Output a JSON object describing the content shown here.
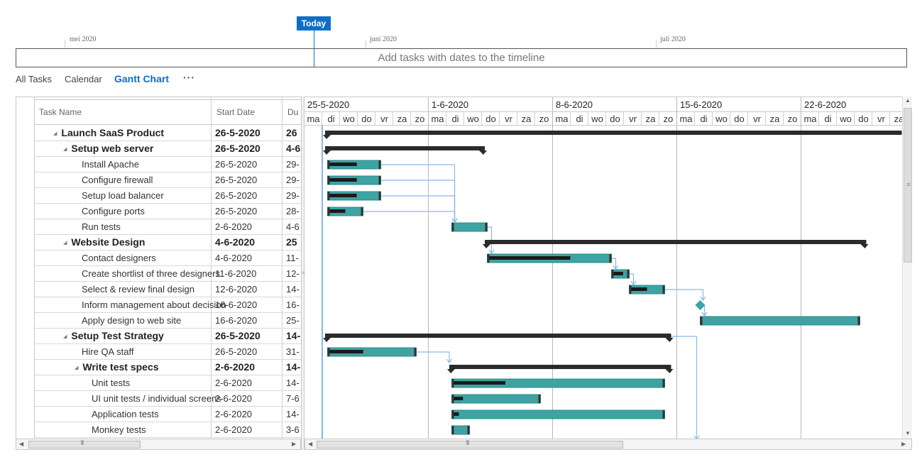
{
  "timeline": {
    "today_label": "Today",
    "months": [
      "mei 2020",
      "juni 2020",
      "juli 2020"
    ],
    "hint": "Add tasks with dates to the timeline"
  },
  "views": {
    "all_tasks": "All Tasks",
    "calendar": "Calendar",
    "gantt": "Gantt Chart",
    "more": "···"
  },
  "grid": {
    "columns": {
      "name": "Task Name",
      "start": "Start Date",
      "duration": "Du"
    },
    "rows": [
      {
        "name": "Launch SaaS Product",
        "start": "26-5-2020",
        "dur": "26",
        "level": 0,
        "summary": true
      },
      {
        "name": "Setup web server",
        "start": "26-5-2020",
        "dur": "4-6",
        "level": 1,
        "summary": true
      },
      {
        "name": "Install Apache",
        "start": "26-5-2020",
        "dur": "29-",
        "level": 2,
        "summary": false
      },
      {
        "name": "Configure firewall",
        "start": "26-5-2020",
        "dur": "29-",
        "level": 2,
        "summary": false
      },
      {
        "name": "Setup load balancer",
        "start": "26-5-2020",
        "dur": "29-",
        "level": 2,
        "summary": false
      },
      {
        "name": "Configure ports",
        "start": "26-5-2020",
        "dur": "28-",
        "level": 2,
        "summary": false
      },
      {
        "name": "Run tests",
        "start": "2-6-2020",
        "dur": "4-6",
        "level": 2,
        "summary": false
      },
      {
        "name": "Website Design",
        "start": "4-6-2020",
        "dur": "25",
        "level": 1,
        "summary": true
      },
      {
        "name": "Contact designers",
        "start": "4-6-2020",
        "dur": "11-",
        "level": 2,
        "summary": false
      },
      {
        "name": "Create shortlist of three designers",
        "start": "11-6-2020",
        "dur": "12-",
        "level": 2,
        "summary": false
      },
      {
        "name": "Select & review final design",
        "start": "12-6-2020",
        "dur": "14-",
        "level": 2,
        "summary": false
      },
      {
        "name": "Inform management about decision",
        "start": "16-6-2020",
        "dur": "16-",
        "level": 2,
        "summary": false
      },
      {
        "name": "Apply design to web site",
        "start": "16-6-2020",
        "dur": "25-",
        "level": 2,
        "summary": false
      },
      {
        "name": "Setup Test Strategy",
        "start": "26-5-2020",
        "dur": "14-",
        "level": 1,
        "summary": true
      },
      {
        "name": "Hire QA staff",
        "start": "26-5-2020",
        "dur": "31-",
        "level": 2,
        "summary": false
      },
      {
        "name": "Write test specs",
        "start": "2-6-2020",
        "dur": "14-",
        "level": 2,
        "summary": true
      },
      {
        "name": "Unit tests",
        "start": "2-6-2020",
        "dur": "14-",
        "level": 3,
        "summary": false
      },
      {
        "name": "UI unit tests / individual screens",
        "start": "2-6-2020",
        "dur": "7-6",
        "level": 3,
        "summary": false
      },
      {
        "name": "Application tests",
        "start": "2-6-2020",
        "dur": "14-",
        "level": 3,
        "summary": false
      },
      {
        "name": "Monkey tests",
        "start": "2-6-2020",
        "dur": "3-6",
        "level": 3,
        "summary": false
      }
    ]
  },
  "gantt": {
    "weeks": [
      "25-5-2020",
      "1-6-2020",
      "8-6-2020",
      "15-6-2020",
      "22-6-2020"
    ],
    "days": [
      "ma",
      "di",
      "wo",
      "do",
      "vr",
      "za",
      "zo"
    ],
    "first_day": "25-5-2020",
    "today_day": 1,
    "colors": {
      "bar": "#3ea3a3",
      "summary": "#2b2b2b",
      "progress": "#1a1a1a",
      "link": "#8ab8e6",
      "today": "#0F6FC6"
    },
    "bars": [
      {
        "row": 0,
        "type": "summary",
        "start": 1,
        "end": 33.5
      },
      {
        "row": 1,
        "type": "summary",
        "start": 1,
        "end": 10
      },
      {
        "row": 2,
        "type": "task",
        "start": 1.3,
        "end": 4.3,
        "progress": 0.55
      },
      {
        "row": 3,
        "type": "task",
        "start": 1.3,
        "end": 4.3,
        "progress": 0.55
      },
      {
        "row": 4,
        "type": "task",
        "start": 1.3,
        "end": 4.3,
        "progress": 0.55
      },
      {
        "row": 5,
        "type": "task",
        "start": 1.3,
        "end": 3.3,
        "progress": 0.5
      },
      {
        "row": 6,
        "type": "task",
        "start": 8.3,
        "end": 10.3,
        "progress": 0
      },
      {
        "row": 7,
        "type": "summary",
        "start": 10,
        "end": 31.5
      },
      {
        "row": 8,
        "type": "task",
        "start": 10.3,
        "end": 17.3,
        "progress": 0.67
      },
      {
        "row": 9,
        "type": "task",
        "start": 17.3,
        "end": 18.3,
        "progress": 0.67
      },
      {
        "row": 10,
        "type": "task",
        "start": 18.3,
        "end": 20.3,
        "progress": 0.5
      },
      {
        "row": 11,
        "type": "milestone",
        "start": 22.3
      },
      {
        "row": 12,
        "type": "task",
        "start": 22.3,
        "end": 31.3,
        "progress": 0
      },
      {
        "row": 13,
        "type": "summary",
        "start": 1,
        "end": 20.5
      },
      {
        "row": 14,
        "type": "task",
        "start": 1.3,
        "end": 6.3,
        "progress": 0.4
      },
      {
        "row": 15,
        "type": "summary",
        "start": 8,
        "end": 20.5
      },
      {
        "row": 16,
        "type": "task",
        "start": 8.3,
        "end": 20.3,
        "progress": 0.25
      },
      {
        "row": 17,
        "type": "task",
        "start": 8.3,
        "end": 13.3,
        "progress": 0.12
      },
      {
        "row": 18,
        "type": "task",
        "start": 8.3,
        "end": 20.3,
        "progress": 0.03
      },
      {
        "row": 19,
        "type": "task",
        "start": 8.3,
        "end": 9.3,
        "progress": 0
      }
    ],
    "links": [
      {
        "from": 2,
        "to": 6
      },
      {
        "from": 3,
        "to": 6
      },
      {
        "from": 4,
        "to": 6
      },
      {
        "from": 5,
        "to": 6
      },
      {
        "from": 6,
        "to": 8
      },
      {
        "from": 8,
        "to": 9
      },
      {
        "from": 9,
        "to": 10
      },
      {
        "from": 10,
        "to": 11
      },
      {
        "from": 11,
        "to": 12
      },
      {
        "from": 14,
        "to": 15
      },
      {
        "from": 13,
        "to": 21
      }
    ]
  }
}
